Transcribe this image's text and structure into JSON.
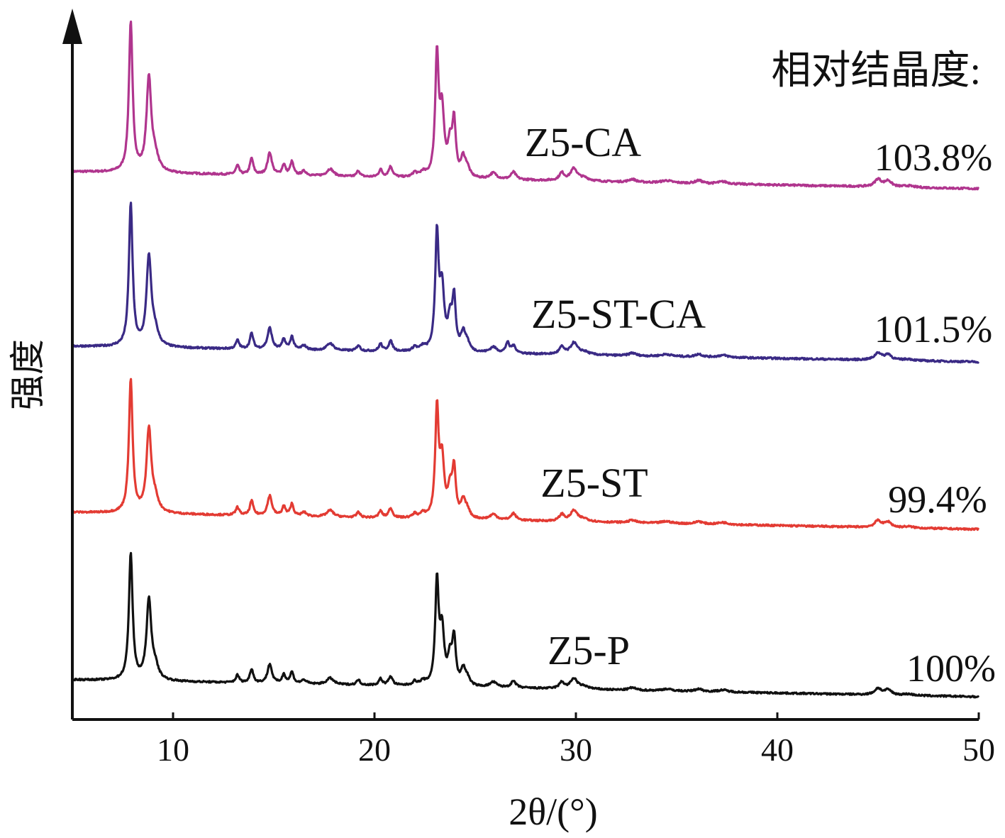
{
  "chart_data": {
    "type": "line",
    "title": "",
    "xlabel": "2θ/(°)",
    "ylabel": "强度",
    "xlim": [
      5,
      50
    ],
    "x_ticks": [
      10,
      20,
      30,
      40,
      50
    ],
    "y_ticks": [],
    "grid": false,
    "annotation_title": "相对结晶度:",
    "peaks_common": [
      {
        "x": 7.9,
        "h": 1.0,
        "w": 0.11
      },
      {
        "x": 8.8,
        "h": 0.62,
        "w": 0.14
      },
      {
        "x": 9.1,
        "h": 0.1,
        "w": 0.2
      },
      {
        "x": 13.2,
        "h": 0.06,
        "w": 0.1
      },
      {
        "x": 13.9,
        "h": 0.11,
        "w": 0.1
      },
      {
        "x": 14.8,
        "h": 0.15,
        "w": 0.13
      },
      {
        "x": 15.5,
        "h": 0.07,
        "w": 0.1
      },
      {
        "x": 15.9,
        "h": 0.09,
        "w": 0.1
      },
      {
        "x": 16.5,
        "h": 0.03,
        "w": 0.15
      },
      {
        "x": 17.8,
        "h": 0.05,
        "w": 0.2
      },
      {
        "x": 19.2,
        "h": 0.04,
        "w": 0.1
      },
      {
        "x": 20.3,
        "h": 0.05,
        "w": 0.1
      },
      {
        "x": 20.8,
        "h": 0.07,
        "w": 0.12
      },
      {
        "x": 22.0,
        "h": 0.03,
        "w": 0.12
      },
      {
        "x": 22.4,
        "h": 0.03,
        "w": 0.15
      },
      {
        "x": 23.1,
        "h": 0.8,
        "w": 0.1
      },
      {
        "x": 23.35,
        "h": 0.42,
        "w": 0.13
      },
      {
        "x": 23.75,
        "h": 0.2,
        "w": 0.13
      },
      {
        "x": 23.95,
        "h": 0.35,
        "w": 0.1
      },
      {
        "x": 24.4,
        "h": 0.12,
        "w": 0.13
      },
      {
        "x": 24.6,
        "h": 0.06,
        "w": 0.15
      },
      {
        "x": 25.9,
        "h": 0.04,
        "w": 0.2
      },
      {
        "x": 26.9,
        "h": 0.05,
        "w": 0.15
      },
      {
        "x": 29.3,
        "h": 0.05,
        "w": 0.15
      },
      {
        "x": 29.9,
        "h": 0.08,
        "w": 0.2
      },
      {
        "x": 30.4,
        "h": 0.02,
        "w": 0.3
      },
      {
        "x": 32.8,
        "h": 0.02,
        "w": 0.2
      },
      {
        "x": 34.5,
        "h": 0.015,
        "w": 0.3
      },
      {
        "x": 36.1,
        "h": 0.02,
        "w": 0.2
      },
      {
        "x": 37.3,
        "h": 0.015,
        "w": 0.3
      },
      {
        "x": 45.0,
        "h": 0.05,
        "w": 0.2
      },
      {
        "x": 45.5,
        "h": 0.04,
        "w": 0.2
      },
      {
        "x": 46.5,
        "h": 0.01,
        "w": 0.3
      }
    ],
    "series": [
      {
        "name": "Z5-CA",
        "relative_crystallinity": "103.8%",
        "color": "#b0358e",
        "baseline_start": 0.0,
        "baseline_end": -0.11,
        "scale": 1.0,
        "extra_peaks": []
      },
      {
        "name": "Z5-ST-CA",
        "relative_crystallinity": "101.5%",
        "color": "#3a2a85",
        "baseline_start": 0.0,
        "baseline_end": -0.11,
        "scale": 0.98,
        "extra_peaks": [
          {
            "x": 26.6,
            "h": 0.07,
            "w": 0.1
          }
        ]
      },
      {
        "name": "Z5-ST",
        "relative_crystallinity": "99.4%",
        "color": "#e33b33",
        "baseline_start": 0.0,
        "baseline_end": -0.11,
        "scale": 0.96,
        "extra_peaks": []
      },
      {
        "name": "Z5-P",
        "relative_crystallinity": "100%",
        "color": "#111111",
        "baseline_start": 0.0,
        "baseline_end": -0.11,
        "scale": 0.93,
        "extra_peaks": []
      }
    ]
  }
}
